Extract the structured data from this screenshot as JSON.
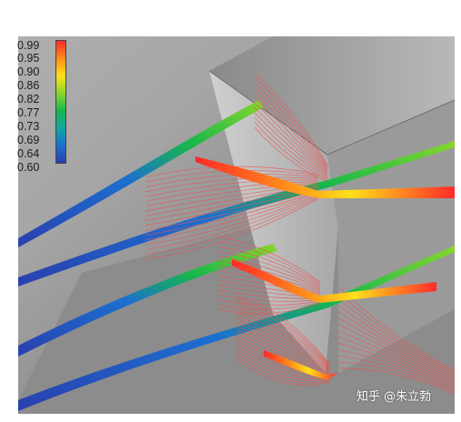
{
  "colorbar": {
    "labels": [
      "0.99",
      "0.95",
      "0.90",
      "0.86",
      "0.82",
      "0.77",
      "0.73",
      "0.69",
      "0.64",
      "0.60"
    ],
    "colors": [
      "#ff2a2a",
      "#ff8c1a",
      "#ffe01a",
      "#8ad62b",
      "#17b84c",
      "#14a7a0",
      "#1c6fd0",
      "#2a3fae"
    ]
  },
  "watermark": "知乎 @朱立勃"
}
